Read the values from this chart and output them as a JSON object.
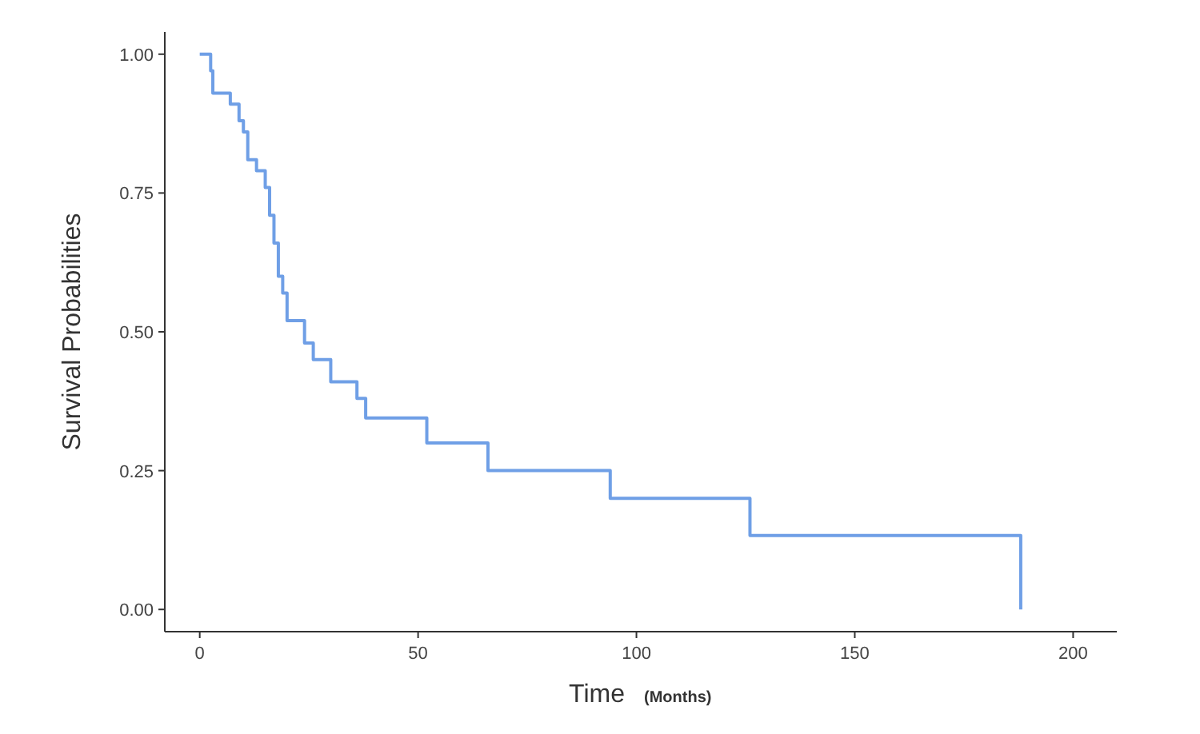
{
  "chart_data": {
    "type": "step",
    "xlabel": "Time",
    "annotations": [
      "(Months)"
    ],
    "ylabel": "Survival Probabilities",
    "series": [
      {
        "color": "#6f9fe6",
        "x": [
          0,
          2.5,
          3,
          7,
          9,
          10,
          11,
          13,
          15,
          16,
          17,
          18,
          19,
          20,
          24,
          26,
          30,
          36,
          38,
          52,
          66,
          94,
          126,
          188,
          188
        ],
        "values": [
          1,
          0.97,
          0.93,
          0.91,
          0.88,
          0.86,
          0.81,
          0.79,
          0.76,
          0.71,
          0.66,
          0.6,
          0.57,
          0.52,
          0.48,
          0.45,
          0.41,
          0.38,
          0.345,
          0.3,
          0.25,
          0.2,
          0.133,
          0.133,
          0
        ]
      }
    ],
    "xlim": [
      -8,
      210
    ],
    "xticks": [
      0,
      50,
      100,
      150,
      200
    ],
    "ylim": [
      -0.04,
      1.04
    ],
    "yticks": [
      {
        "value": 0,
        "label": "0.00"
      },
      {
        "value": 0.25,
        "label": "0.25"
      },
      {
        "value": 0.5,
        "label": "0.50"
      },
      {
        "value": 0.75,
        "label": "0.75"
      },
      {
        "value": 1,
        "label": "1.00"
      }
    ],
    "grid": false
  }
}
